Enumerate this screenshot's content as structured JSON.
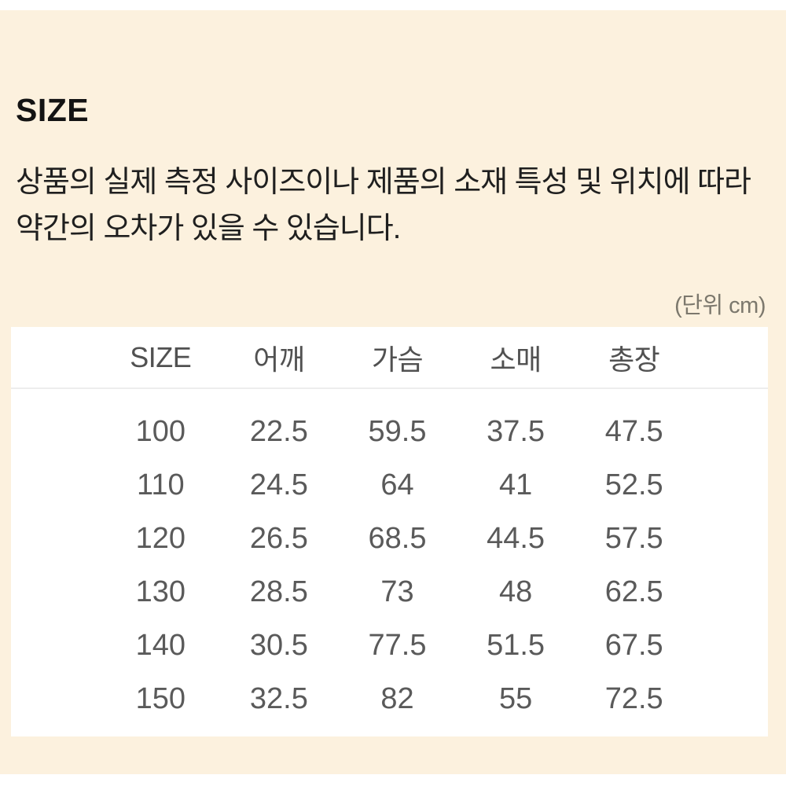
{
  "section": {
    "title": "SIZE",
    "notice_line1": "상품의 실제 측정 사이즈이나 제품의 소재 특성 및 위치에 따라",
    "notice_line2": "약간의 오차가 있을 수 있습니다.",
    "unit_label": "(단위 cm)"
  },
  "size_table": {
    "columns": [
      "SIZE",
      "어깨",
      "가슴",
      "소매",
      "총장"
    ],
    "rows": [
      [
        "100",
        "22.5",
        "59.5",
        "37.5",
        "47.5"
      ],
      [
        "110",
        "24.5",
        "64",
        "41",
        "52.5"
      ],
      [
        "120",
        "26.5",
        "68.5",
        "44.5",
        "57.5"
      ],
      [
        "130",
        "28.5",
        "73",
        "48",
        "62.5"
      ],
      [
        "140",
        "30.5",
        "77.5",
        "51.5",
        "67.5"
      ],
      [
        "150",
        "32.5",
        "82",
        "55",
        "72.5"
      ]
    ]
  },
  "colors": {
    "cream_background": "#fcf1de",
    "table_background": "#ffffff",
    "heading_text": "#131313",
    "notice_text": "#1f1f1f",
    "unit_text": "#7c786d",
    "table_header_text": "#515151",
    "table_data_text": "#5a5a5a",
    "header_divider": "#ededed"
  }
}
